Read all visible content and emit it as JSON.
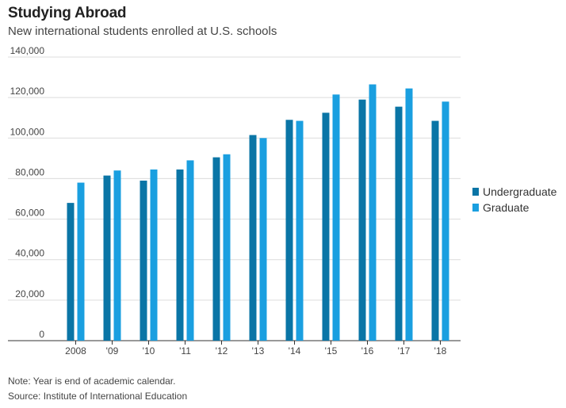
{
  "header": {
    "title": "Studying Abroad",
    "subtitle": "New international students enrolled at U.S. schools"
  },
  "chart_data": {
    "type": "bar",
    "categories": [
      "2008",
      "'09",
      "'10",
      "'11",
      "'12",
      "'13",
      "'14",
      "'15",
      "'16",
      "'17",
      "'18"
    ],
    "series": [
      {
        "name": "Undergraduate",
        "color": "#0a75a6",
        "values": [
          68000,
          81500,
          79000,
          84500,
          90500,
          101500,
          109000,
          112500,
          119000,
          115500,
          108500
        ]
      },
      {
        "name": "Graduate",
        "color": "#1a9fe0",
        "values": [
          78000,
          84000,
          84500,
          89000,
          92000,
          100000,
          108500,
          121500,
          126500,
          124500,
          118000
        ]
      }
    ],
    "ylim": [
      0,
      140000
    ],
    "yticks": [
      0,
      20000,
      40000,
      60000,
      80000,
      100000,
      120000,
      140000
    ],
    "ytick_labels": [
      "0",
      "20,000",
      "40,000",
      "60,000",
      "80,000",
      "100,000",
      "120,000",
      "140,000"
    ],
    "grid": true,
    "legend_position": "right"
  },
  "footer": {
    "note": "Note: Year is end of academic calendar.",
    "source": "Source: Institute of International Education"
  }
}
